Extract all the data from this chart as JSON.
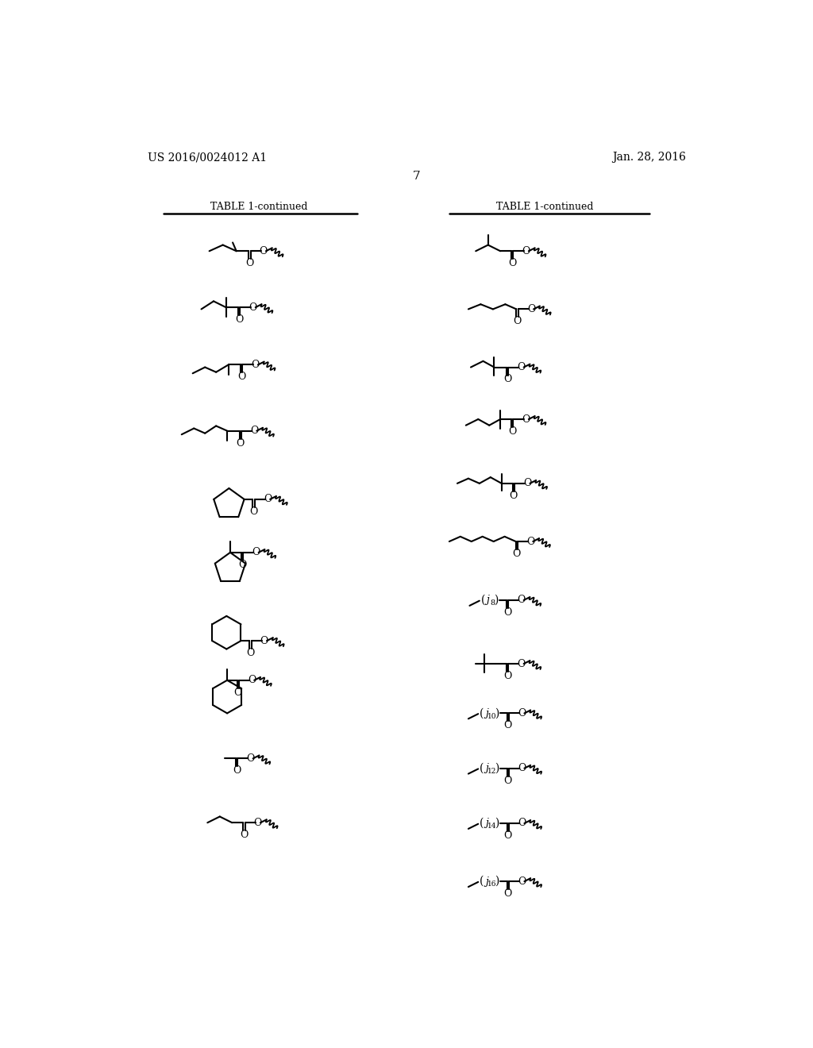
{
  "patent_number": "US 2016/0024012 A1",
  "patent_date": "Jan. 28, 2016",
  "page_number": "7",
  "table_title": "TABLE 1-continued",
  "bg": "#ffffff",
  "lw": 1.5,
  "left_rows_y": [
    205,
    305,
    405,
    505,
    615,
    720,
    825,
    930,
    1035,
    1140
  ],
  "right_rows_y": [
    205,
    300,
    395,
    490,
    585,
    680,
    785,
    880,
    970,
    1060,
    1150,
    1245
  ]
}
